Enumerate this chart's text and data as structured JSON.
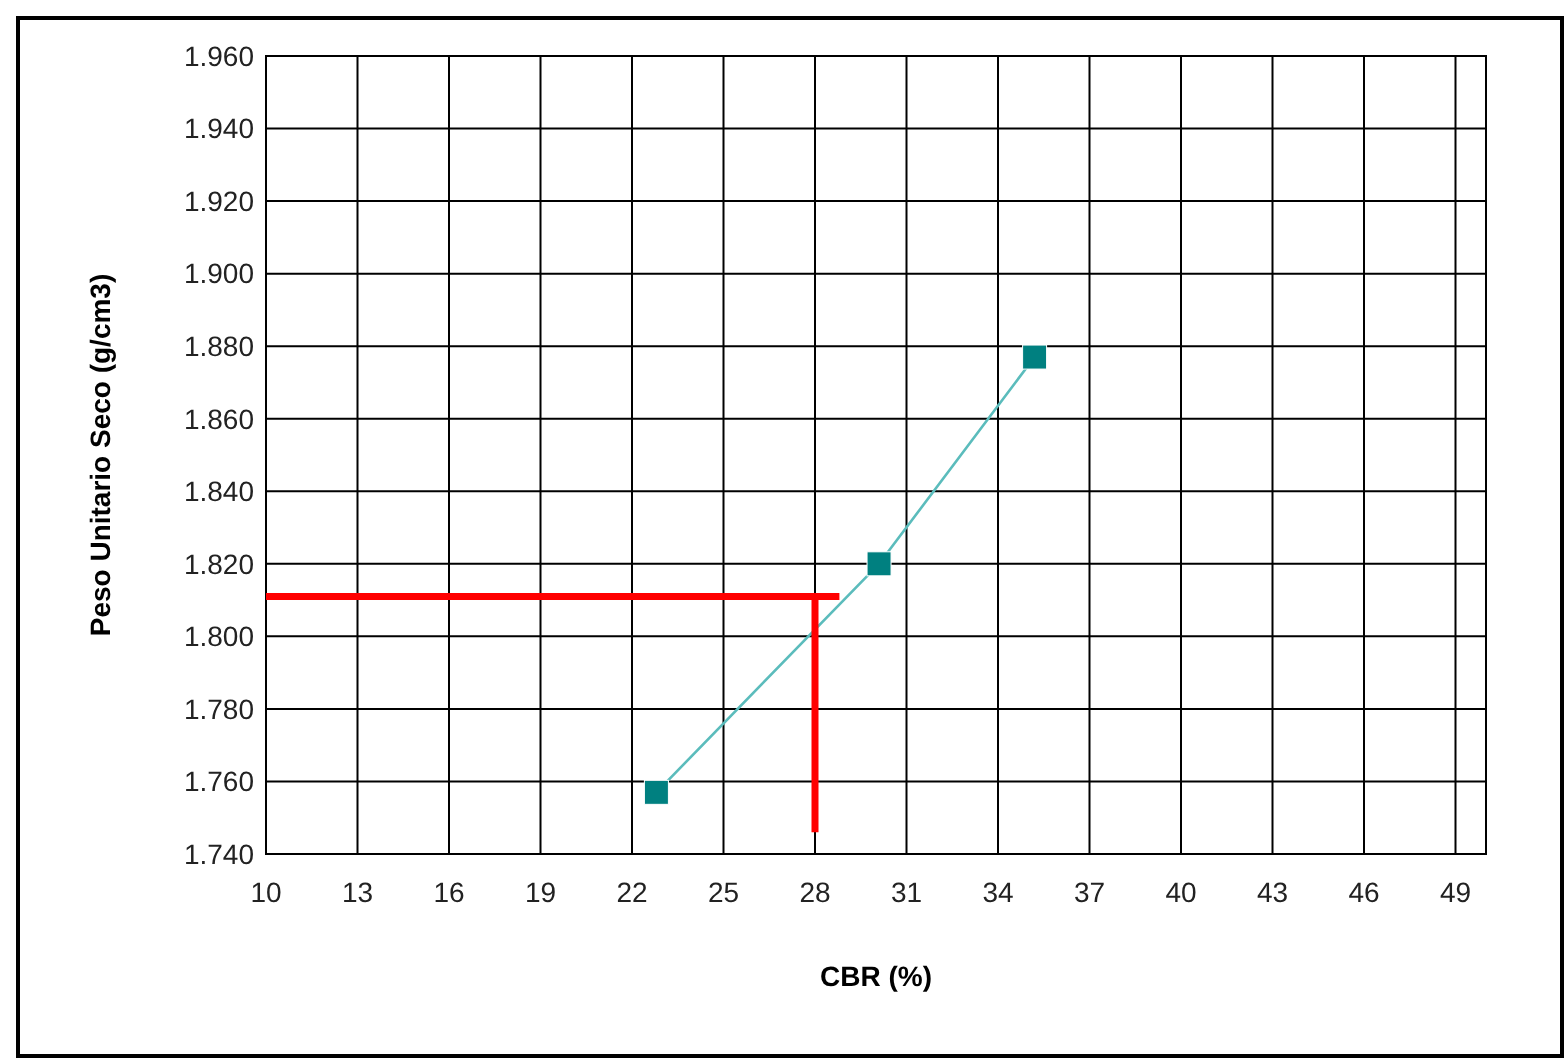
{
  "chart_data": {
    "type": "line",
    "xlabel": "CBR (%)",
    "ylabel": "Peso Unitario Seco (g/cm3)",
    "xlim": [
      10,
      50
    ],
    "xticks": [
      10,
      13,
      16,
      19,
      22,
      25,
      28,
      31,
      34,
      37,
      40,
      43,
      46,
      49
    ],
    "ylim": [
      1.74,
      1.96
    ],
    "yticks": [
      {
        "value": 1.74,
        "label": "1.740"
      },
      {
        "value": 1.76,
        "label": "1.760"
      },
      {
        "value": 1.78,
        "label": "1.780"
      },
      {
        "value": 1.8,
        "label": "1.800"
      },
      {
        "value": 1.82,
        "label": "1.820"
      },
      {
        "value": 1.84,
        "label": "1.840"
      },
      {
        "value": 1.86,
        "label": "1.860"
      },
      {
        "value": 1.88,
        "label": "1.880"
      },
      {
        "value": 1.9,
        "label": "1.900"
      },
      {
        "value": 1.92,
        "label": "1.920"
      },
      {
        "value": 1.94,
        "label": "1.940"
      },
      {
        "value": 1.96,
        "label": "1.960"
      }
    ],
    "grid": true,
    "marker": "square",
    "series": [
      {
        "color": "#5bbcbc",
        "x": [
          22.8,
          30.1,
          35.2
        ],
        "values": [
          1.757,
          1.82,
          1.877
        ]
      },
      {
        "color": "#ff0000",
        "x": [
          10,
          28.8
        ],
        "values": [
          1.811,
          1.811
        ],
        "marker": "none"
      },
      {
        "color": "#ff0000",
        "x": [
          28,
          28
        ],
        "values": [
          1.811,
          1.746
        ],
        "marker": "none"
      }
    ]
  }
}
